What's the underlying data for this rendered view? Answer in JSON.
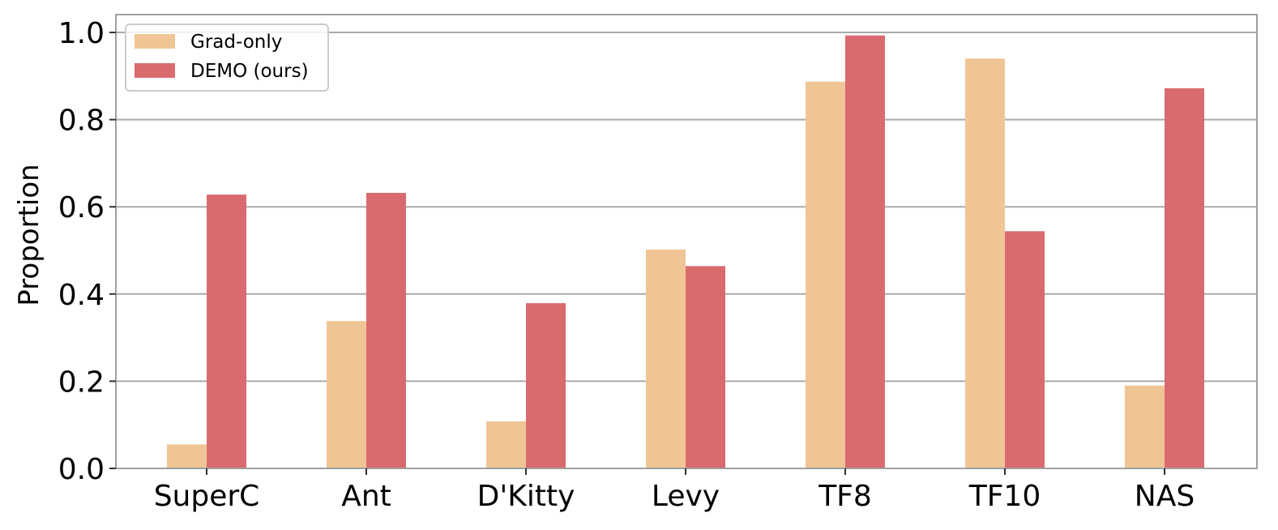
{
  "chart_data": {
    "type": "bar",
    "title": "",
    "xlabel": "",
    "ylabel": "Proportion",
    "ylim": [
      0,
      1.04
    ],
    "yticks": [
      "0.0",
      "0.2",
      "0.4",
      "0.6",
      "0.8",
      "1.0"
    ],
    "grid": "horizontal",
    "legend_position": "top-left",
    "categories": [
      "SuperC",
      "Ant",
      "D'Kitty",
      "Levy",
      "TF8",
      "TF10",
      "NAS"
    ],
    "series": [
      {
        "name": "Grad-only",
        "color": "#f0c595",
        "values": [
          0.055,
          0.338,
          0.108,
          0.502,
          0.887,
          0.94,
          0.19
        ]
      },
      {
        "name": "DEMO (ours)",
        "color": "#d96b6f",
        "values": [
          0.628,
          0.632,
          0.379,
          0.464,
          0.993,
          0.544,
          0.872
        ]
      }
    ]
  }
}
